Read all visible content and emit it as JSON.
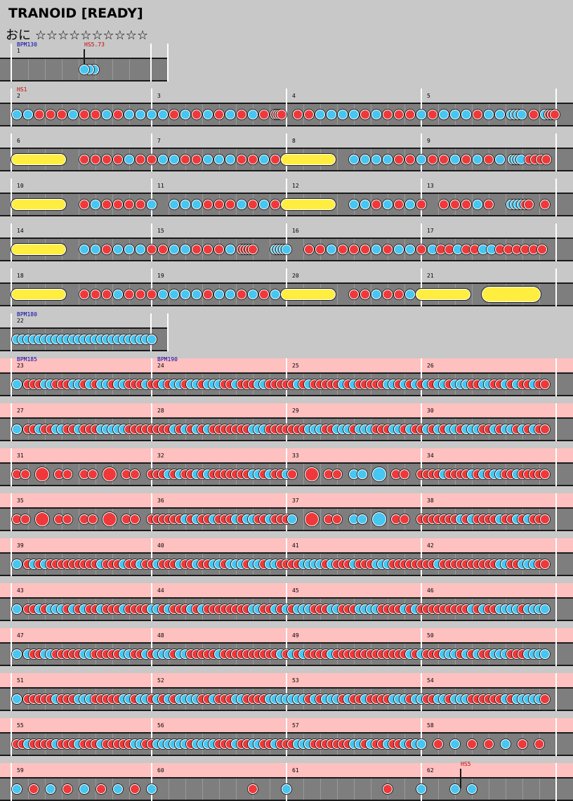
{
  "header": {
    "title": "TRANOID [READY]",
    "course": "おに",
    "stars": "☆☆☆☆☆☆☆☆☆☆",
    "star_count": 10
  },
  "colors": {
    "don": "#f0383a",
    "ka": "#46c6f2",
    "roll": "#ffee40",
    "track": "#7e7e7e",
    "pink_section": "#ffc0c0",
    "bpm_label": "#0000aa",
    "hs_label": "#cc0000"
  },
  "chart": {
    "rows": [
      {
        "measures": [
          "1"
        ],
        "pink": false,
        "labels": [
          {
            "kind": "bpm",
            "text": "BPM130",
            "measure": 0,
            "offset": 0
          },
          {
            "kind": "hs",
            "text": "HS5.73",
            "measure": 0,
            "offset": 0.5
          }
        ],
        "notes": "k:0.5 k:0.53 k:0.56"
      },
      {
        "measures": [
          "2",
          "3",
          "4",
          "5"
        ],
        "pink": false,
        "labels": [
          {
            "kind": "hs",
            "text": "HS1",
            "measure": 0,
            "offset": 0
          }
        ],
        "notes": "pattern"
      },
      {
        "measures": [
          "6",
          "7",
          "8",
          "9"
        ],
        "pink": false,
        "labels": [],
        "notes": "pattern"
      },
      {
        "measures": [
          "10",
          "11",
          "12",
          "13"
        ],
        "pink": false,
        "labels": [],
        "notes": "pattern"
      },
      {
        "measures": [
          "14",
          "15",
          "16",
          "17"
        ],
        "pink": false,
        "labels": [],
        "notes": "pattern"
      },
      {
        "measures": [
          "18",
          "19",
          "20",
          "21"
        ],
        "pink": false,
        "labels": [],
        "notes": "pattern"
      },
      {
        "measures": [
          "22"
        ],
        "pink": false,
        "labels": [
          {
            "kind": "bpm",
            "text": "BPM180",
            "measure": 0,
            "offset": 0
          }
        ],
        "notes": "pattern"
      },
      {
        "measures": [
          "23",
          "24",
          "25",
          "26"
        ],
        "pink": true,
        "labels": [
          {
            "kind": "bpm",
            "text": "BPM185",
            "measure": 0,
            "offset": 0
          },
          {
            "kind": "bpm",
            "text": "BPM190",
            "measure": 1,
            "offset": 0
          }
        ],
        "notes": "pattern"
      },
      {
        "measures": [
          "27",
          "28",
          "29",
          "30"
        ],
        "pink": true,
        "labels": [],
        "notes": "pattern"
      },
      {
        "measures": [
          "31",
          "32",
          "33",
          "34"
        ],
        "pink": true,
        "labels": [],
        "notes": "pattern"
      },
      {
        "measures": [
          "35",
          "36",
          "37",
          "38"
        ],
        "pink": true,
        "labels": [],
        "notes": "pattern"
      },
      {
        "measures": [
          "39",
          "40",
          "41",
          "42"
        ],
        "pink": true,
        "labels": [],
        "notes": "pattern"
      },
      {
        "measures": [
          "43",
          "44",
          "45",
          "46"
        ],
        "pink": true,
        "labels": [],
        "notes": "pattern"
      },
      {
        "measures": [
          "47",
          "48",
          "49",
          "50"
        ],
        "pink": true,
        "labels": [],
        "notes": "pattern"
      },
      {
        "measures": [
          "51",
          "52",
          "53",
          "54"
        ],
        "pink": true,
        "labels": [],
        "notes": "pattern"
      },
      {
        "measures": [
          "55",
          "56",
          "57",
          "58"
        ],
        "pink": true,
        "labels": [],
        "notes": "pattern"
      },
      {
        "measures": [
          "59",
          "60",
          "61",
          "62"
        ],
        "pink": true,
        "labels": [
          {
            "kind": "hs",
            "text": "HS5",
            "measure": 3,
            "offset": 0.25
          }
        ],
        "notes": "pattern"
      }
    ]
  }
}
